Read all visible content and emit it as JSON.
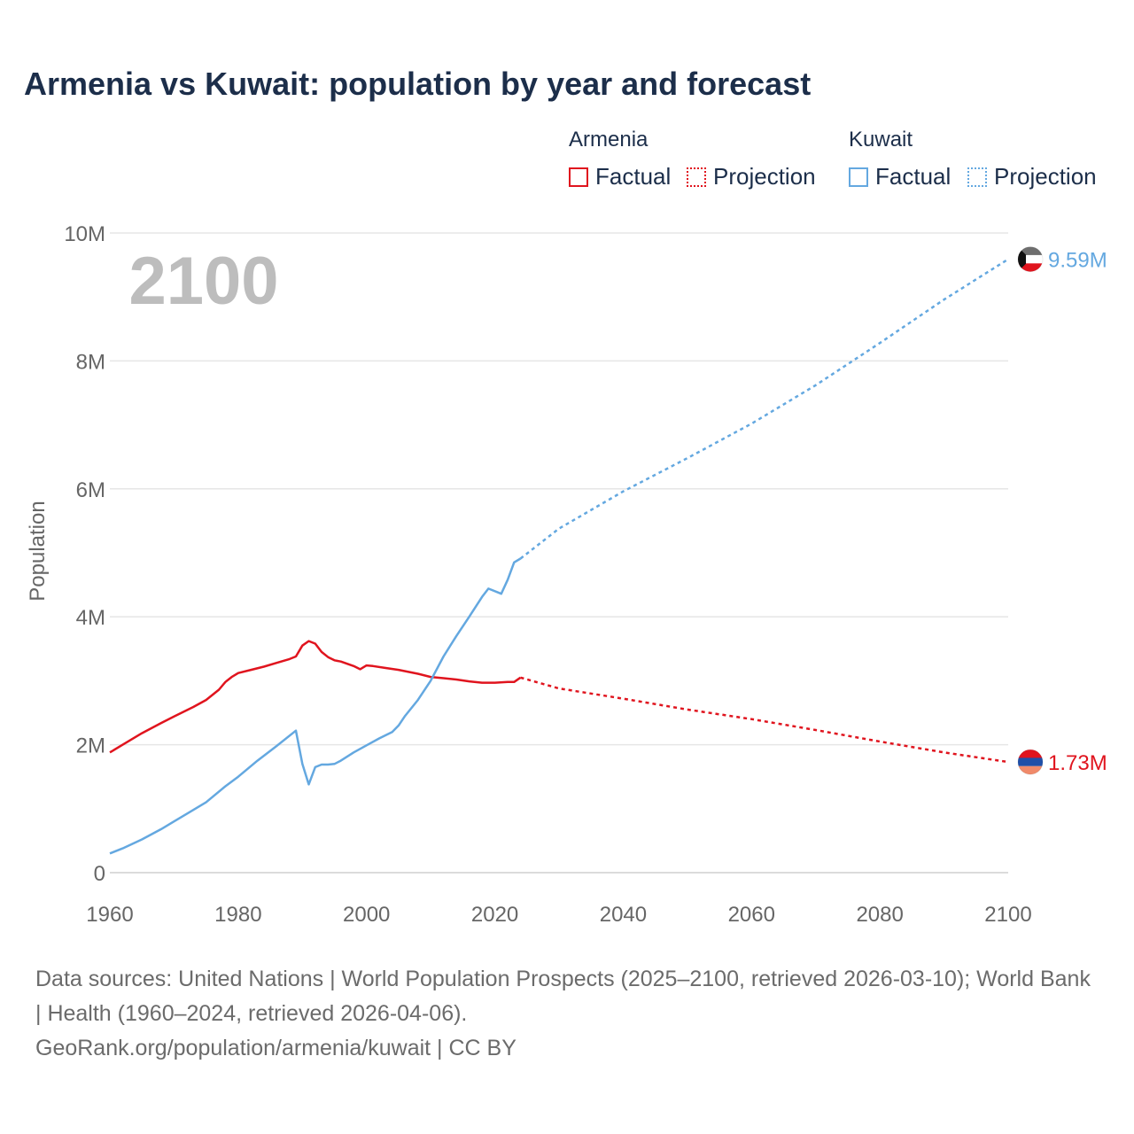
{
  "title": "Armenia vs Kuwait: population by year and forecast",
  "legend": {
    "groups": [
      {
        "name": "Armenia",
        "factual": "Factual",
        "projection": "Projection",
        "color": "#e0141e"
      },
      {
        "name": "Kuwait",
        "factual": "Factual",
        "projection": "Projection",
        "color": "#64a8e0"
      }
    ]
  },
  "year_label": "2100",
  "footer": {
    "sources": "Data sources: United Nations | World Population Prospects (2025–2100, retrieved 2026-03-10); World Bank | Health (1960–2024, retrieved 2026-04-06).",
    "site": "GeoRank.org/population/armenia/kuwait | CC BY"
  },
  "chart_data": {
    "type": "line",
    "title": "Armenia vs Kuwait: population by year and forecast",
    "xlabel": "",
    "ylabel": "Population",
    "xlim": [
      1960,
      2100
    ],
    "ylim": [
      0,
      10000000
    ],
    "x_ticks": [
      1960,
      1980,
      2000,
      2020,
      2040,
      2060,
      2080,
      2100
    ],
    "x_tick_labels": [
      "1960",
      "1980",
      "2000",
      "2020",
      "2040",
      "2060",
      "2080",
      "2100"
    ],
    "y_ticks": [
      0,
      2000000,
      4000000,
      6000000,
      8000000,
      10000000
    ],
    "y_tick_labels": [
      "0",
      "2M",
      "4M",
      "6M",
      "8M",
      "10M"
    ],
    "grid": true,
    "series": [
      {
        "name": "Armenia",
        "color": "#e0141e",
        "end_label": "1.73M",
        "factual": {
          "x": [
            1960,
            1962,
            1965,
            1968,
            1970,
            1973,
            1975,
            1977,
            1978,
            1979,
            1980,
            1982,
            1984,
            1986,
            1988,
            1989,
            1990,
            1991,
            1992,
            1993,
            1994,
            1995,
            1996,
            1998,
            1999,
            2000,
            2001,
            2003,
            2005,
            2008,
            2010,
            2012,
            2014,
            2016,
            2018,
            2020,
            2022,
            2023,
            2024
          ],
          "y": [
            1880000,
            2000000,
            2180000,
            2340000,
            2440000,
            2590000,
            2700000,
            2860000,
            2980000,
            3060000,
            3120000,
            3170000,
            3220000,
            3280000,
            3340000,
            3380000,
            3550000,
            3620000,
            3580000,
            3450000,
            3370000,
            3320000,
            3300000,
            3230000,
            3180000,
            3240000,
            3230000,
            3200000,
            3170000,
            3110000,
            3060000,
            3040000,
            3020000,
            2990000,
            2970000,
            2970000,
            2980000,
            2980000,
            3050000
          ]
        },
        "projection": {
          "x": [
            2024,
            2030,
            2040,
            2050,
            2060,
            2070,
            2080,
            2090,
            2100
          ],
          "y": [
            3050000,
            2880000,
            2720000,
            2550000,
            2400000,
            2230000,
            2050000,
            1880000,
            1730000
          ]
        }
      },
      {
        "name": "Kuwait",
        "color": "#64a8e0",
        "end_label": "9.59M",
        "factual": {
          "x": [
            1960,
            1962,
            1965,
            1968,
            1970,
            1972,
            1975,
            1978,
            1980,
            1983,
            1986,
            1989,
            1990,
            1991,
            1992,
            1993,
            1994,
            1995,
            1996,
            1998,
            2000,
            2002,
            2004,
            2005,
            2006,
            2008,
            2010,
            2012,
            2014,
            2016,
            2018,
            2019,
            2021,
            2022,
            2023,
            2024
          ],
          "y": [
            300000,
            380000,
            520000,
            680000,
            800000,
            920000,
            1100000,
            1350000,
            1500000,
            1750000,
            1980000,
            2220000,
            1700000,
            1380000,
            1650000,
            1690000,
            1690000,
            1700000,
            1750000,
            1880000,
            1990000,
            2100000,
            2200000,
            2300000,
            2450000,
            2700000,
            3000000,
            3380000,
            3700000,
            4000000,
            4310000,
            4440000,
            4360000,
            4580000,
            4850000,
            4910000
          ]
        },
        "projection": {
          "x": [
            2024,
            2030,
            2040,
            2050,
            2060,
            2070,
            2080,
            2090,
            2100
          ],
          "y": [
            4910000,
            5380000,
            5960000,
            6480000,
            7020000,
            7620000,
            8280000,
            8960000,
            9590000
          ]
        }
      }
    ]
  }
}
